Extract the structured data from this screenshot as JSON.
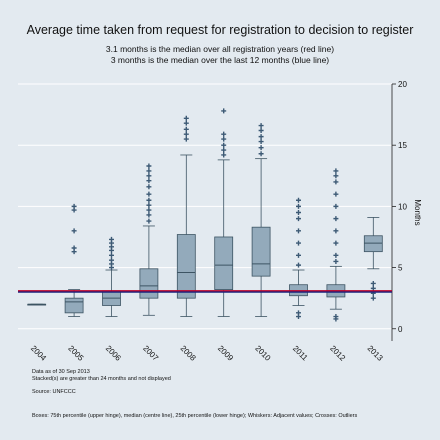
{
  "chart_data": {
    "type": "boxplot",
    "title": "Average time taken from request for registration to decision to register",
    "subtitle": [
      "3.1 months is the median over all registration years (red line)",
      "3 months is the median over the last 12 months (blue line)"
    ],
    "ylabel": "Months",
    "ylim": [
      -1,
      20
    ],
    "yticks": [
      0,
      5,
      10,
      15,
      20
    ],
    "y_axis_side": "right",
    "grid": true,
    "categories": [
      "2004",
      "2005",
      "2006",
      "2007",
      "2008",
      "2009",
      "2010",
      "2011",
      "2012",
      "2013"
    ],
    "series": [
      {
        "category": "2004",
        "whisker_low": 2.0,
        "q1": 2.0,
        "median": 2.0,
        "q3": 2.0,
        "whisker_high": 2.0,
        "outliers": []
      },
      {
        "category": "2005",
        "whisker_low": 1.0,
        "q1": 1.3,
        "median": 2.2,
        "q3": 2.5,
        "whisker_high": 3.2,
        "outliers": [
          6.3,
          6.6,
          8.0,
          9.7,
          10.0
        ]
      },
      {
        "category": "2006",
        "whisker_low": 1.0,
        "q1": 1.9,
        "median": 2.5,
        "q3": 3.1,
        "whisker_high": 4.8,
        "outliers": [
          5.0,
          5.3,
          5.6,
          6.0,
          6.4,
          6.7,
          7.0,
          7.3
        ]
      },
      {
        "category": "2007",
        "whisker_low": 1.1,
        "q1": 2.5,
        "median": 3.5,
        "q3": 4.9,
        "whisker_high": 8.4,
        "outliers": [
          8.8,
          9.3,
          9.7,
          10.1,
          10.5,
          11.0,
          11.6,
          12.1,
          12.5,
          12.9,
          13.3
        ]
      },
      {
        "category": "2008",
        "whisker_low": 1.0,
        "q1": 2.5,
        "median": 4.6,
        "q3": 7.7,
        "whisker_high": 14.2,
        "outliers": [
          15.5,
          15.9,
          16.3,
          16.8,
          17.2
        ]
      },
      {
        "category": "2009",
        "whisker_low": 1.0,
        "q1": 3.2,
        "median": 5.2,
        "q3": 7.5,
        "whisker_high": 13.8,
        "outliers": [
          14.2,
          14.6,
          15.0,
          15.5,
          15.9,
          17.8
        ]
      },
      {
        "category": "2010",
        "whisker_low": 1.0,
        "q1": 4.3,
        "median": 5.3,
        "q3": 8.3,
        "whisker_high": 13.9,
        "outliers": [
          14.3,
          14.8,
          15.3,
          15.7,
          16.2,
          16.6
        ]
      },
      {
        "category": "2011",
        "whisker_low": 1.9,
        "q1": 2.7,
        "median": 3.0,
        "q3": 3.6,
        "whisker_high": 4.8,
        "outliers": [
          1.0,
          1.3,
          5.2,
          6.0,
          7.0,
          8.0,
          9.0,
          9.5,
          10.0,
          10.5
        ]
      },
      {
        "category": "2012",
        "whisker_low": 1.6,
        "q1": 2.6,
        "median": 3.1,
        "q3": 3.6,
        "whisker_high": 5.1,
        "outliers": [
          0.8,
          1.0,
          5.5,
          6.0,
          7.0,
          8.0,
          9.0,
          10.0,
          11.0,
          12.0,
          12.5,
          12.9
        ]
      },
      {
        "category": "2013",
        "whisker_low": 4.9,
        "q1": 6.3,
        "median": 7.0,
        "q3": 7.6,
        "whisker_high": 9.1,
        "outliers": [
          2.5,
          2.9,
          3.3,
          3.7
        ]
      }
    ],
    "reference_lines": [
      {
        "value": 3.1,
        "color": "#c0002a"
      },
      {
        "value": 3.0,
        "color": "#1a237e"
      }
    ],
    "notes": [
      "Data as of 30 Sep 2013",
      "Stacked(s) are greater than 24 months and not displayed",
      "Source: UNFCCC",
      "Boxes: 75th percentile (upper hinge), median (centre line), 25th percentile (lower hinge); Whiskers: Adjacent values; Crosses: Outliers"
    ],
    "colors": {
      "background": "#e3eaf0",
      "plot_background": "#e3eaf0",
      "box_fill": "#93aabb",
      "box_stroke": "#3d5463",
      "outlier": "#3d5a75",
      "grid": "#ffffff"
    }
  }
}
